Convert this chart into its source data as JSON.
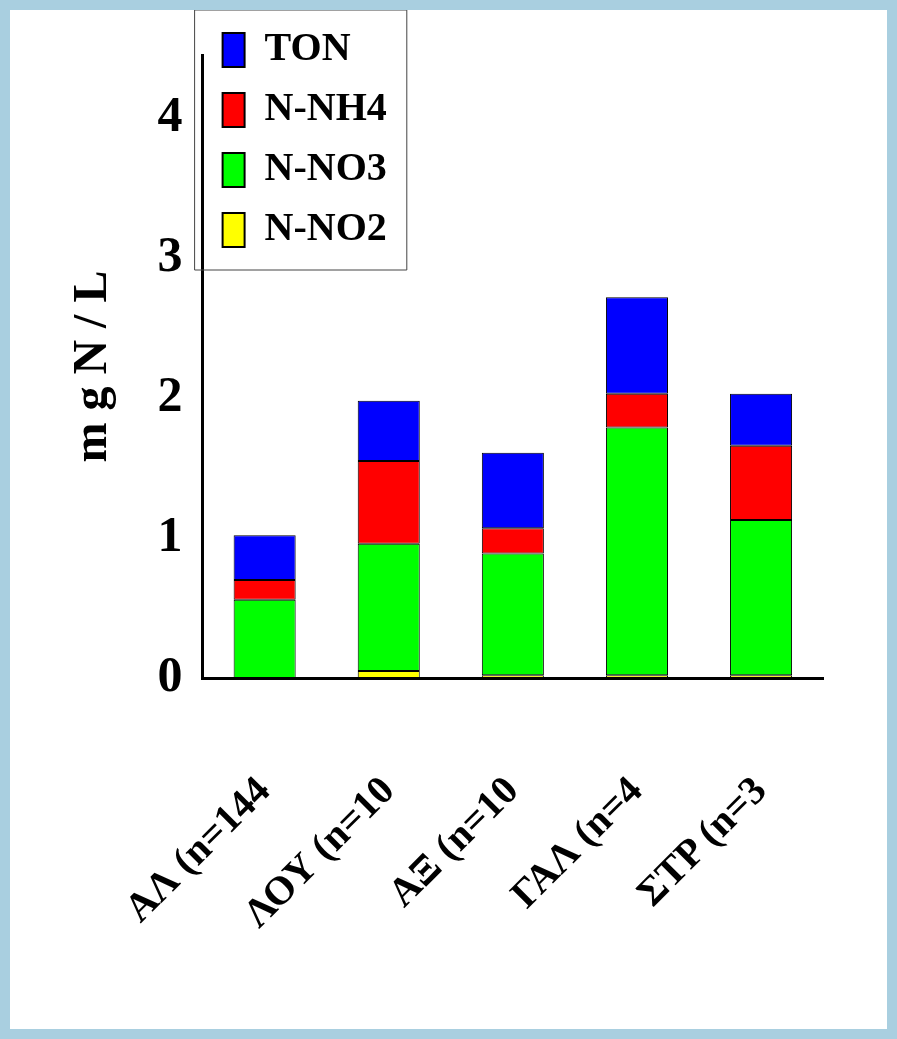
{
  "chart_data": {
    "type": "bar",
    "stacked": true,
    "ylabel": "m g N / L",
    "categories": [
      "ΑΛ (n=144",
      "ΛΟΥ (n=10",
      "ΑΞ (n=10",
      "ΓΑΛ (n=4",
      "ΣΤΡ (n=3"
    ],
    "series": [
      {
        "name": "N-NO2",
        "color": "#ffff00",
        "values": [
          null,
          0.05,
          0.02,
          0.02,
          0.02
        ]
      },
      {
        "name": "N-NO3",
        "color": "#00ff00",
        "values": [
          0.56,
          0.91,
          0.87,
          1.77,
          1.11
        ]
      },
      {
        "name": "N-NH4",
        "color": "#ff0000",
        "values": [
          0.14,
          0.59,
          0.18,
          0.24,
          0.53
        ]
      },
      {
        "name": "TON",
        "color": "#0000ff",
        "values": [
          0.32,
          0.43,
          0.54,
          0.69,
          0.37
        ]
      }
    ],
    "ylim": [
      0,
      4.45
    ],
    "yticks": [
      0,
      1,
      2,
      3,
      4
    ],
    "grid": false,
    "legend": "top left"
  }
}
